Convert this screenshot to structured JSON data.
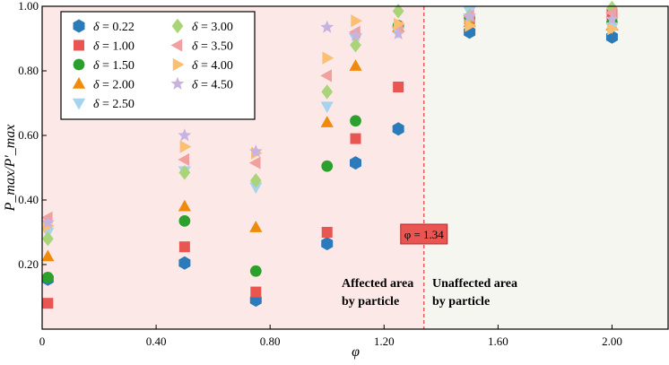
{
  "chart_data": {
    "type": "scatter",
    "xlabel": "φ",
    "ylabel": "P_max/P'_max",
    "xlim": [
      0,
      2.2
    ],
    "ylim": [
      0,
      1.0
    ],
    "x_ticks": [
      0,
      0.4,
      0.8,
      1.2,
      1.6,
      2.0
    ],
    "x_tick_labels": [
      "0",
      "0.40",
      "0.80",
      "1.20",
      "1.60",
      "2.00"
    ],
    "y_ticks": [
      0.2,
      0.4,
      0.6,
      0.8,
      1.0
    ],
    "y_tick_labels": [
      "0.20",
      "0.40",
      "0.60",
      "0.80",
      "1.00"
    ],
    "threshold": {
      "x": 1.34,
      "label": "φ = 1.34"
    },
    "regions": [
      {
        "name": "affected",
        "x_range": [
          0,
          1.34
        ],
        "color": "#fde8e8",
        "label_lines": [
          "Affected area",
          "by particle"
        ]
      },
      {
        "name": "unaffected",
        "x_range": [
          1.34,
          2.2
        ],
        "color": "#f6f6f1",
        "label_lines": [
          "Unaffected area",
          "by particle"
        ]
      }
    ],
    "legend_prefix": "δ = ",
    "series": [
      {
        "name": "0.22",
        "marker": "hexagon",
        "color": "#2b7bba",
        "x": [
          0.02,
          0.5,
          0.75,
          1.0,
          1.1,
          1.25,
          1.5,
          2.0
        ],
        "y": [
          0.155,
          0.205,
          0.09,
          0.265,
          0.515,
          0.62,
          0.92,
          0.905
        ]
      },
      {
        "name": "1.00",
        "marker": "square",
        "color": "#e95551",
        "x": [
          0.02,
          0.5,
          0.75,
          1.0,
          1.1,
          1.25,
          1.5,
          2.0
        ],
        "y": [
          0.08,
          0.255,
          0.115,
          0.3,
          0.59,
          0.75,
          0.96,
          0.975
        ]
      },
      {
        "name": "1.50",
        "marker": "circle",
        "color": "#2ca02c",
        "x": [
          0.02,
          0.5,
          0.75,
          1.0,
          1.1,
          1.25,
          1.5,
          2.0
        ],
        "y": [
          0.16,
          0.335,
          0.18,
          0.505,
          0.645,
          0.94,
          0.965,
          0.95
        ]
      },
      {
        "name": "2.00",
        "marker": "triangle-up",
        "color": "#f08a0c",
        "x": [
          0.02,
          0.5,
          0.75,
          1.0,
          1.1,
          1.25,
          1.5,
          2.0
        ],
        "y": [
          0.225,
          0.38,
          0.315,
          0.64,
          0.815,
          0.935,
          0.95,
          0.94
        ]
      },
      {
        "name": "2.50",
        "marker": "triangle-down",
        "color": "#a8d3ef",
        "x": [
          0.02,
          0.5,
          0.75,
          1.0,
          1.1,
          1.25,
          1.5,
          2.0
        ],
        "y": [
          0.3,
          0.49,
          0.44,
          0.69,
          0.9,
          0.92,
          0.985,
          0.935
        ]
      },
      {
        "name": "3.00",
        "marker": "diamond",
        "color": "#a9d578",
        "x": [
          0.02,
          0.5,
          0.75,
          1.0,
          1.1,
          1.25,
          1.5,
          2.0
        ],
        "y": [
          0.28,
          0.485,
          0.46,
          0.735,
          0.88,
          0.985,
          0.97,
          0.995
        ]
      },
      {
        "name": "3.50",
        "marker": "triangle-left",
        "color": "#f1a0a0",
        "x": [
          0.02,
          0.5,
          0.75,
          1.0,
          1.1,
          1.25,
          1.5,
          2.0
        ],
        "y": [
          0.345,
          0.525,
          0.515,
          0.785,
          0.92,
          0.935,
          0.97,
          0.98
        ]
      },
      {
        "name": "4.00",
        "marker": "triangle-right",
        "color": "#fbbf72",
        "x": [
          0.02,
          0.5,
          0.75,
          1.0,
          1.1,
          1.25,
          1.5,
          2.0
        ],
        "y": [
          0.32,
          0.565,
          0.545,
          0.84,
          0.955,
          0.945,
          0.94,
          0.93
        ]
      },
      {
        "name": "4.50",
        "marker": "star",
        "color": "#c6b3de",
        "x": [
          0.02,
          0.5,
          0.75,
          1.0,
          1.1,
          1.25,
          1.5,
          2.0
        ],
        "y": [
          0.33,
          0.6,
          0.55,
          0.935,
          0.91,
          0.915,
          0.97,
          0.96
        ]
      }
    ]
  }
}
